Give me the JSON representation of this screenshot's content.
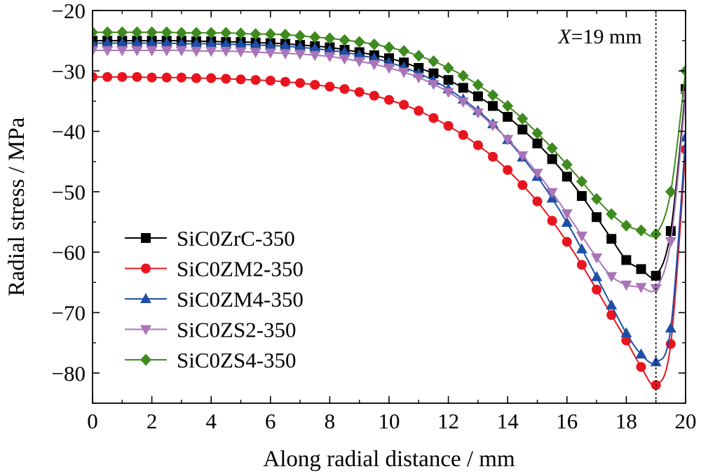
{
  "chart_data": {
    "type": "line",
    "xlabel": "Along radial distance / mm",
    "ylabel": "Radial stress / MPa",
    "xlim": [
      0,
      20
    ],
    "ylim": [
      -85,
      -20
    ],
    "xticks": [
      0,
      2,
      4,
      6,
      8,
      10,
      12,
      14,
      16,
      18,
      20
    ],
    "xtick_labels": [
      "0",
      "2",
      "4",
      "6",
      "8",
      "10",
      "12",
      "14",
      "16",
      "18",
      "20"
    ],
    "yticks": [
      -80,
      -70,
      -60,
      -50,
      -40,
      -30,
      -20
    ],
    "ytick_labels": [
      "−80",
      "−70",
      "−60",
      "−50",
      "−40",
      "−30",
      "−20"
    ],
    "grid": false,
    "legend_position": "lower-left",
    "annotation": {
      "x": 19,
      "label_italic": "X",
      "label_rest": "=19 mm",
      "line_style": "dotted"
    },
    "x": [
      0,
      0.5,
      1,
      1.5,
      2,
      2.5,
      3,
      3.5,
      4,
      4.5,
      5,
      5.5,
      6,
      6.5,
      7,
      7.5,
      8,
      8.5,
      9,
      9.5,
      10,
      10.5,
      11,
      11.5,
      12,
      12.5,
      13,
      13.5,
      14,
      14.5,
      15,
      15.5,
      16,
      16.5,
      17,
      17.5,
      18,
      18.5,
      19,
      19.5,
      20
    ],
    "series": [
      {
        "name": "SiC0ZrC-350",
        "color": "#000000",
        "marker": "square",
        "values": [
          -25.0,
          -25.0,
          -25.0,
          -25.0,
          -25.0,
          -25.0,
          -25.0,
          -25.1,
          -25.1,
          -25.2,
          -25.2,
          -25.3,
          -25.4,
          -25.5,
          -25.7,
          -25.9,
          -26.1,
          -26.5,
          -26.9,
          -27.4,
          -27.9,
          -28.6,
          -29.5,
          -30.4,
          -31.5,
          -32.8,
          -34.2,
          -35.8,
          -37.6,
          -39.7,
          -42.0,
          -44.6,
          -47.5,
          -50.7,
          -54.2,
          -57.8,
          -61.3,
          -62.8,
          -63.9,
          -56.5,
          -33.0
        ]
      },
      {
        "name": "SiC0ZM2-350",
        "color": "#e8141e",
        "marker": "circle",
        "values": [
          -31.0,
          -31.0,
          -31.0,
          -31.0,
          -31.1,
          -31.1,
          -31.1,
          -31.2,
          -31.2,
          -31.3,
          -31.4,
          -31.5,
          -31.6,
          -31.8,
          -32.0,
          -32.3,
          -32.6,
          -33.0,
          -33.5,
          -34.1,
          -34.8,
          -35.6,
          -36.6,
          -37.8,
          -39.1,
          -40.6,
          -42.3,
          -44.2,
          -46.4,
          -48.9,
          -51.6,
          -54.8,
          -58.3,
          -62.1,
          -66.2,
          -70.4,
          -74.6,
          -79.0,
          -82.0,
          -75.2,
          -43.0
        ]
      },
      {
        "name": "SiC0ZM4-350",
        "color": "#1e4fa8",
        "marker": "triangle-up",
        "values": [
          -25.4,
          -25.4,
          -25.4,
          -25.4,
          -25.4,
          -25.4,
          -25.5,
          -25.5,
          -25.5,
          -25.6,
          -25.6,
          -25.7,
          -25.8,
          -25.9,
          -26.1,
          -26.3,
          -26.6,
          -26.9,
          -27.4,
          -27.9,
          -28.6,
          -29.4,
          -30.4,
          -31.6,
          -33.0,
          -34.7,
          -36.6,
          -38.8,
          -41.4,
          -44.3,
          -47.5,
          -51.1,
          -55.1,
          -59.5,
          -64.1,
          -68.8,
          -73.4,
          -76.9,
          -78.2,
          -72.6,
          -41.0
        ]
      },
      {
        "name": "SiC0ZS2-350",
        "color": "#a974b8",
        "marker": "triangle-down",
        "values": [
          -26.6,
          -26.6,
          -26.6,
          -26.6,
          -26.6,
          -26.6,
          -26.6,
          -26.7,
          -26.7,
          -26.7,
          -26.8,
          -26.9,
          -27.0,
          -27.1,
          -27.2,
          -27.4,
          -27.6,
          -28.0,
          -28.4,
          -28.9,
          -29.5,
          -30.2,
          -31.1,
          -32.2,
          -33.5,
          -35.1,
          -36.9,
          -39.0,
          -41.3,
          -44.0,
          -46.9,
          -50.1,
          -53.6,
          -57.3,
          -60.9,
          -64.0,
          -65.4,
          -65.8,
          -66.0,
          -58.2,
          -34.0
        ]
      },
      {
        "name": "SiC0ZS4-350",
        "color": "#3e8a1e",
        "marker": "diamond",
        "values": [
          -23.6,
          -23.6,
          -23.6,
          -23.6,
          -23.6,
          -23.6,
          -23.7,
          -23.7,
          -23.7,
          -23.7,
          -23.8,
          -23.9,
          -23.9,
          -24.0,
          -24.2,
          -24.4,
          -24.6,
          -24.9,
          -25.2,
          -25.6,
          -26.1,
          -26.7,
          -27.5,
          -28.4,
          -29.5,
          -30.8,
          -32.3,
          -34.0,
          -35.8,
          -37.9,
          -40.3,
          -42.8,
          -45.5,
          -48.3,
          -51.2,
          -53.7,
          -55.6,
          -56.4,
          -57.0,
          -50.0,
          -30.0
        ]
      }
    ]
  }
}
